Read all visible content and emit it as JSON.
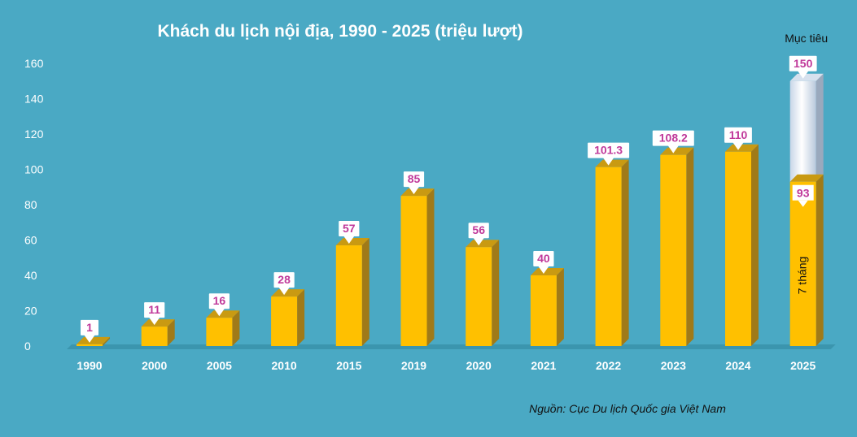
{
  "chart_data": {
    "type": "bar",
    "title": "Khách du lịch nội địa, 1990 - 2025 (triệu lượt)",
    "categories": [
      "1990",
      "2000",
      "2005",
      "2010",
      "2015",
      "2019",
      "2020",
      "2021",
      "2022",
      "2023",
      "2024",
      "2025"
    ],
    "values": [
      1,
      11,
      16,
      28,
      57,
      85,
      56,
      40,
      101.3,
      108.2,
      110,
      93
    ],
    "value_labels": [
      "1",
      "11",
      "16",
      "28",
      "57",
      "85",
      "56",
      "40",
      "101.3",
      "108.2",
      "110",
      "93"
    ],
    "target": {
      "category": "2025",
      "value": 150,
      "label": "150",
      "legend": "Mục tiêu"
    },
    "bar_note": {
      "category": "2025",
      "text": "7 tháng"
    },
    "ylim": [
      0,
      160
    ],
    "yticks": [
      0,
      20,
      40,
      60,
      80,
      100,
      120,
      140,
      160
    ],
    "grid": false,
    "source": "Nguồn: Cục Du lịch Quốc gia Việt Nam",
    "colors": {
      "background": "#4aa9c4",
      "bar_front": "#ffc000",
      "bar_side": "#a07a18",
      "bar_top": "#c99a12",
      "target_front": "#e6eef7",
      "target_side": "#9aa9bd",
      "label_text": "#c0399a"
    }
  }
}
